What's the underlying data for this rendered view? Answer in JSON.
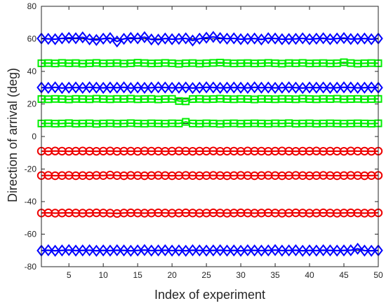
{
  "chart_data": {
    "type": "scatter",
    "title": "",
    "xlabel": "Index of experiment",
    "ylabel": "Direction of arrival (deg)",
    "xlim": [
      1,
      50
    ],
    "ylim": [
      -80,
      80
    ],
    "xticks": [
      5,
      10,
      15,
      20,
      25,
      30,
      35,
      40,
      45,
      50
    ],
    "yticks": [
      -80,
      -60,
      -40,
      -20,
      0,
      20,
      40,
      60,
      80
    ],
    "grid": false,
    "legend": "none",
    "x": [
      1,
      2,
      3,
      4,
      5,
      6,
      7,
      8,
      9,
      10,
      11,
      12,
      13,
      14,
      15,
      16,
      17,
      18,
      19,
      20,
      21,
      22,
      23,
      24,
      25,
      26,
      27,
      28,
      29,
      30,
      31,
      32,
      33,
      34,
      35,
      36,
      37,
      38,
      39,
      40,
      41,
      42,
      43,
      44,
      45,
      46,
      47,
      48,
      49,
      50
    ],
    "reference_lines": [
      60,
      45,
      30,
      23,
      8,
      -9,
      -24,
      -47,
      -70
    ],
    "series": [
      {
        "marker": "diamond",
        "color": "#0000ff",
        "groups": [
          {
            "values": [
              60.2,
              60.0,
              59.8,
              60.3,
              60.6,
              60.4,
              60.9,
              59.7,
              59.3,
              60.1,
              60.5,
              58.4,
              60.0,
              60.6,
              60.3,
              61.0,
              59.6,
              59.5,
              60.2,
              59.8,
              60.0,
              60.3,
              59.0,
              60.1,
              60.7,
              61.2,
              60.5,
              60.1,
              60.3,
              59.8,
              60.0,
              60.2,
              59.6,
              60.4,
              60.2,
              59.8,
              59.9,
              60.0,
              60.3,
              59.8,
              60.1,
              60.4,
              59.8,
              60.2,
              60.5,
              59.9,
              60.0,
              60.2,
              59.8,
              60.2
            ]
          },
          {
            "values": [
              30.1,
              29.9,
              30.2,
              29.8,
              30.0,
              30.1,
              29.9,
              30.2,
              30.0,
              29.9,
              30.1,
              30.0,
              30.2,
              29.8,
              30.1,
              29.9,
              30.0,
              30.2,
              30.1,
              29.9,
              30.0,
              30.1,
              29.8,
              30.0,
              30.2,
              30.1,
              29.9,
              30.0,
              30.1,
              30.0,
              29.9,
              30.2,
              30.0,
              30.1,
              29.9,
              30.0,
              30.2,
              30.0,
              29.8,
              30.1,
              30.0,
              30.1,
              29.9,
              30.0,
              30.2,
              30.1,
              29.9,
              30.0,
              30.1,
              30.0
            ]
          },
          {
            "values": [
              -70.1,
              -69.9,
              -70.2,
              -70.0,
              -69.8,
              -70.1,
              -70.0,
              -69.9,
              -70.2,
              -70.0,
              -70.1,
              -69.9,
              -70.0,
              -70.2,
              -70.0,
              -69.8,
              -70.1,
              -70.0,
              -69.9,
              -70.1,
              -70.0,
              -70.2,
              -69.9,
              -70.0,
              -70.1,
              -70.0,
              -69.9,
              -70.1,
              -70.0,
              -70.2,
              -69.9,
              -70.0,
              -70.1,
              -70.0,
              -69.8,
              -70.1,
              -70.0,
              -69.9,
              -70.2,
              -70.0,
              -70.1,
              -69.9,
              -70.0,
              -70.1,
              -70.0,
              -69.9,
              -69.0,
              -70.1,
              -70.2,
              -70.0
            ]
          }
        ]
      },
      {
        "marker": "square",
        "color": "#00ee00",
        "groups": [
          {
            "values": [
              45.0,
              45.1,
              44.9,
              45.2,
              45.0,
              45.1,
              44.8,
              45.0,
              45.2,
              44.9,
              45.0,
              45.1,
              44.8,
              45.0,
              45.3,
              45.1,
              44.9,
              45.0,
              45.2,
              45.0,
              44.7,
              45.0,
              45.1,
              44.8,
              45.0,
              45.2,
              45.4,
              45.1,
              44.9,
              45.0,
              45.1,
              44.9,
              45.0,
              45.2,
              45.0,
              44.8,
              45.1,
              45.0,
              45.2,
              44.9,
              45.0,
              45.1,
              44.9,
              45.0,
              45.6,
              45.1,
              44.8,
              45.0,
              45.1,
              45.0
            ]
          },
          {
            "values": [
              23.0,
              22.9,
              23.1,
              23.0,
              22.8,
              23.1,
              23.0,
              22.9,
              23.2,
              23.0,
              22.9,
              23.1,
              23.0,
              23.2,
              22.9,
              23.0,
              23.1,
              22.8,
              23.0,
              23.1,
              21.8,
              21.6,
              23.0,
              23.1,
              22.9,
              23.0,
              23.2,
              23.0,
              22.9,
              23.1,
              23.0,
              22.8,
              23.1,
              23.0,
              22.9,
              23.1,
              23.0,
              22.9,
              23.2,
              23.0,
              22.9,
              23.1,
              23.0,
              23.2,
              22.9,
              23.0,
              23.1,
              22.9,
              23.0,
              23.1
            ]
          },
          {
            "values": [
              8.0,
              8.1,
              7.9,
              8.0,
              8.2,
              7.9,
              8.0,
              8.1,
              7.8,
              8.0,
              8.1,
              7.9,
              8.0,
              8.2,
              8.0,
              7.9,
              8.1,
              8.0,
              7.9,
              8.1,
              8.0,
              9.0,
              8.0,
              7.9,
              8.1,
              8.0,
              7.8,
              8.0,
              8.1,
              7.9,
              8.0,
              8.1,
              8.0,
              7.9,
              8.1,
              8.0,
              8.2,
              7.9,
              8.0,
              8.1,
              7.9,
              8.0,
              8.1,
              8.0,
              7.9,
              8.0,
              8.1,
              8.0,
              7.9,
              8.1
            ]
          }
        ]
      },
      {
        "marker": "circle",
        "color": "#ee0000",
        "groups": [
          {
            "values": [
              -9.0,
              -9.1,
              -8.9,
              -9.0,
              -9.1,
              -9.0,
              -8.9,
              -9.0,
              -9.1,
              -9.0,
              -8.9,
              -9.1,
              -9.0,
              -9.0,
              -9.1,
              -8.9,
              -9.0,
              -9.0,
              -9.1,
              -9.0,
              -8.9,
              -9.0,
              -9.1,
              -9.0,
              -9.0,
              -8.9,
              -9.1,
              -9.0,
              -9.0,
              -9.1,
              -8.9,
              -9.0,
              -9.0,
              -9.1,
              -9.0,
              -8.9,
              -9.0,
              -9.1,
              -9.0,
              -9.0,
              -8.9,
              -9.1,
              -9.0,
              -9.0,
              -9.1,
              -8.9,
              -9.0,
              -9.0,
              -9.1,
              -9.0
            ]
          },
          {
            "values": [
              -24.0,
              -23.9,
              -24.1,
              -24.0,
              -23.9,
              -24.1,
              -24.0,
              -24.1,
              -23.9,
              -24.0,
              -23.7,
              -24.0,
              -24.1,
              -23.9,
              -24.0,
              -24.1,
              -24.0,
              -23.9,
              -24.0,
              -24.1,
              -24.0,
              -23.9,
              -24.0,
              -24.1,
              -24.0,
              -23.9,
              -24.0,
              -24.1,
              -24.0,
              -23.9,
              -24.0,
              -24.1,
              -24.0,
              -23.9,
              -24.0,
              -24.1,
              -24.0,
              -23.9,
              -24.0,
              -24.1,
              -24.0,
              -23.9,
              -24.0,
              -24.1,
              -24.0,
              -23.9,
              -24.0,
              -24.1,
              -24.0,
              -23.9
            ]
          },
          {
            "values": [
              -47.0,
              -46.9,
              -47.1,
              -47.0,
              -46.9,
              -47.0,
              -47.1,
              -47.0,
              -46.9,
              -47.0,
              -47.1,
              -47.3,
              -47.0,
              -46.9,
              -47.0,
              -47.1,
              -47.0,
              -46.9,
              -47.0,
              -47.1,
              -47.0,
              -46.9,
              -47.0,
              -47.1,
              -47.0,
              -46.9,
              -47.0,
              -47.1,
              -47.0,
              -46.9,
              -47.0,
              -47.1,
              -47.0,
              -46.9,
              -47.0,
              -47.1,
              -47.0,
              -46.9,
              -47.0,
              -47.1,
              -47.0,
              -46.9,
              -47.0,
              -47.1,
              -47.0,
              -46.9,
              -47.0,
              -47.1,
              -47.0,
              -46.9
            ]
          }
        ]
      }
    ]
  }
}
